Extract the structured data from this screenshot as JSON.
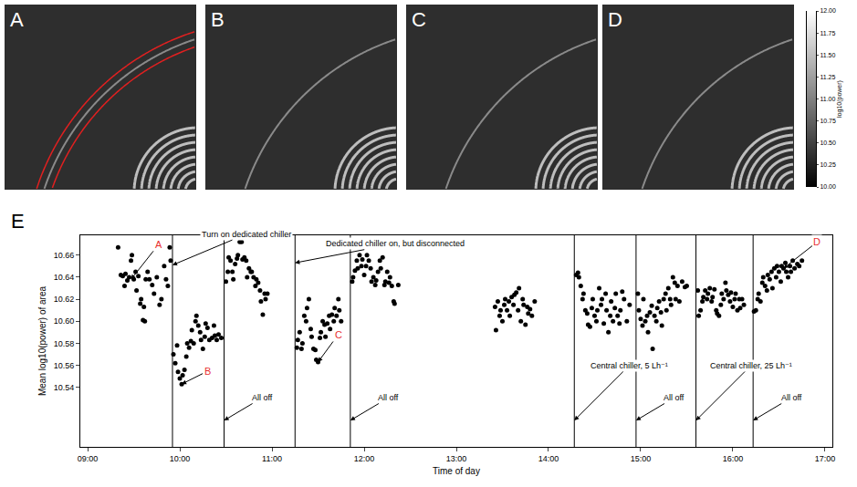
{
  "image_panels": [
    {
      "label": "A"
    },
    {
      "label": "B"
    },
    {
      "label": "C"
    },
    {
      "label": "D"
    }
  ],
  "colorbar": {
    "title": "log10(power)",
    "range": [
      10,
      12
    ],
    "ticks": [
      {
        "value": 10,
        "label": "10.00"
      },
      10.25,
      {
        "value": 10.5,
        "label": "10.50"
      },
      10.75,
      {
        "value": 11,
        "label": "11.00"
      },
      11.25,
      {
        "value": 11.5,
        "label": "11.50"
      },
      11.75,
      {
        "value": 12,
        "label": "12.00"
      }
    ]
  },
  "chart_label": "E",
  "chart_data": {
    "type": "scatter",
    "x_label": "Time of day",
    "y_label": "Mean log10(power) of area",
    "color": "#000000",
    "marker": "circle",
    "grid": false,
    "xlim": [
      8.92,
      17.08
    ],
    "xticks": [
      {
        "value": 9,
        "label": "09:00"
      },
      {
        "value": 10,
        "label": "10:00"
      },
      {
        "value": 11,
        "label": "11:00"
      },
      {
        "value": 12,
        "label": "12:00"
      },
      {
        "value": 13,
        "label": "13:00"
      },
      {
        "value": 14,
        "label": "14:00"
      },
      {
        "value": 15,
        "label": "15:00"
      },
      {
        "value": 16,
        "label": "16:00"
      },
      {
        "value": 17,
        "label": "17:00"
      }
    ],
    "ylim": [
      10.486,
      10.678
    ],
    "yticks": [
      10.54,
      10.56,
      10.58,
      {
        "value": 10.6,
        "label": "10.60"
      },
      10.62,
      10.64,
      10.66
    ],
    "vertical_lines": [
      9.92,
      10.48,
      11.25,
      11.85,
      14.28,
      14.95,
      15.6,
      16.22
    ],
    "x": [
      9.33,
      9.36,
      9.38,
      9.4,
      9.41,
      9.43,
      9.45,
      9.47,
      9.48,
      9.5,
      9.52,
      9.53,
      9.55,
      9.57,
      9.58,
      9.6,
      9.61,
      9.62,
      9.63,
      9.65,
      9.67,
      9.7,
      9.72,
      9.75,
      9.78,
      9.8,
      9.83,
      9.85,
      9.87,
      9.89,
      9.9,
      9.93,
      9.95,
      9.97,
      9.98,
      10.0,
      10.02,
      10.03,
      10.05,
      10.07,
      10.08,
      10.1,
      10.12,
      10.13,
      10.15,
      10.17,
      10.18,
      10.2,
      10.22,
      10.23,
      10.25,
      10.27,
      10.28,
      10.3,
      10.32,
      10.35,
      10.37,
      10.38,
      10.4,
      10.42,
      10.45,
      10.5,
      10.52,
      10.53,
      10.55,
      10.57,
      10.58,
      10.6,
      10.62,
      10.63,
      10.65,
      10.67,
      10.68,
      10.7,
      10.72,
      10.73,
      10.75,
      10.77,
      10.78,
      10.8,
      10.82,
      10.83,
      10.85,
      10.87,
      10.88,
      10.9,
      10.92,
      10.93,
      10.95,
      11.27,
      11.28,
      11.3,
      11.32,
      11.33,
      11.35,
      11.37,
      11.38,
      11.4,
      11.42,
      11.43,
      11.45,
      11.47,
      11.48,
      11.5,
      11.52,
      11.53,
      11.55,
      11.57,
      11.58,
      11.6,
      11.62,
      11.63,
      11.65,
      11.67,
      11.68,
      11.7,
      11.72,
      11.73,
      11.75,
      11.87,
      11.88,
      11.9,
      11.92,
      11.93,
      11.95,
      11.97,
      11.98,
      12.0,
      12.02,
      12.03,
      12.05,
      12.07,
      12.08,
      12.1,
      12.12,
      12.13,
      12.15,
      12.17,
      12.18,
      12.2,
      12.22,
      12.23,
      12.25,
      12.27,
      12.28,
      12.3,
      12.32,
      12.33,
      12.37,
      13.42,
      13.43,
      13.45,
      13.47,
      13.48,
      13.5,
      13.52,
      13.53,
      13.55,
      13.57,
      13.58,
      13.6,
      13.62,
      13.63,
      13.65,
      13.67,
      13.68,
      13.7,
      13.72,
      13.73,
      13.75,
      13.77,
      13.78,
      13.8,
      13.82,
      13.85,
      14.3,
      14.32,
      14.33,
      14.35,
      14.37,
      14.38,
      14.4,
      14.42,
      14.43,
      14.45,
      14.47,
      14.48,
      14.5,
      14.52,
      14.53,
      14.55,
      14.57,
      14.58,
      14.6,
      14.62,
      14.63,
      14.65,
      14.67,
      14.68,
      14.7,
      14.72,
      14.73,
      14.75,
      14.77,
      14.78,
      14.8,
      14.82,
      14.85,
      14.88,
      14.97,
      14.98,
      15.0,
      15.02,
      15.03,
      15.05,
      15.07,
      15.08,
      15.1,
      15.12,
      15.13,
      15.15,
      15.17,
      15.18,
      15.2,
      15.22,
      15.23,
      15.25,
      15.27,
      15.28,
      15.3,
      15.32,
      15.33,
      15.35,
      15.37,
      15.38,
      15.4,
      15.42,
      15.45,
      15.48,
      15.5,
      15.62,
      15.63,
      15.65,
      15.67,
      15.68,
      15.7,
      15.72,
      15.73,
      15.75,
      15.77,
      15.78,
      15.8,
      15.82,
      15.83,
      15.85,
      15.87,
      15.88,
      15.9,
      15.92,
      15.93,
      15.95,
      15.97,
      15.98,
      16.0,
      16.02,
      16.03,
      16.05,
      16.07,
      16.08,
      16.1,
      16.12,
      16.23,
      16.25,
      16.27,
      16.28,
      16.3,
      16.32,
      16.33,
      16.35,
      16.37,
      16.38,
      16.4,
      16.42,
      16.43,
      16.45,
      16.47,
      16.48,
      16.5,
      16.52,
      16.53,
      16.55,
      16.57,
      16.58,
      16.6,
      16.62,
      16.63,
      16.65,
      16.67,
      16.7,
      16.72,
      16.75
    ],
    "values": [
      10.667,
      10.642,
      10.641,
      10.632,
      10.643,
      10.637,
      10.64,
      10.655,
      10.66,
      10.638,
      10.645,
      10.628,
      10.641,
      10.616,
      10.62,
      10.601,
      10.613,
      10.6,
      10.638,
      10.645,
      10.638,
      10.633,
      10.625,
      10.64,
      10.615,
      10.62,
      10.65,
      10.638,
      10.632,
      10.667,
      10.655,
      10.57,
      10.562,
      10.578,
      10.554,
      10.548,
      10.543,
      10.551,
      10.556,
      10.568,
      10.58,
      10.576,
      10.582,
      10.592,
      10.58,
      10.6,
      10.605,
      10.596,
      10.59,
      10.583,
      10.575,
      10.586,
      10.598,
      10.594,
      10.583,
      10.585,
      10.596,
      10.587,
      10.583,
      10.588,
      10.585,
      10.636,
      10.645,
      10.658,
      10.655,
      10.645,
      10.638,
      10.652,
      10.657,
      10.66,
      10.672,
      10.672,
      10.656,
      10.658,
      10.655,
      10.64,
      10.648,
      10.645,
      10.645,
      10.64,
      10.632,
      10.638,
      10.635,
      10.628,
      10.618,
      10.606,
      10.625,
      10.62,
      10.625,
      10.576,
      10.583,
      10.59,
      10.575,
      10.58,
      10.605,
      10.6,
      10.612,
      10.62,
      10.593,
      10.586,
      10.575,
      10.574,
      10.565,
      10.563,
      10.585,
      10.59,
      10.6,
      10.597,
      10.586,
      10.598,
      10.605,
      10.593,
      10.606,
      10.6,
      10.612,
      10.605,
      10.62,
      10.61,
      10.6,
      10.636,
      10.64,
      10.646,
      10.655,
      10.648,
      10.66,
      10.65,
      10.656,
      10.642,
      10.65,
      10.66,
      10.655,
      10.648,
      10.636,
      10.64,
      10.633,
      10.637,
      10.645,
      10.655,
      10.648,
      10.658,
      10.633,
      10.636,
      10.645,
      10.635,
      10.64,
      10.632,
      10.618,
      10.616,
      10.633,
      10.613,
      10.592,
      10.618,
      10.605,
      10.61,
      10.6,
      10.615,
      10.62,
      10.61,
      10.618,
      10.605,
      10.622,
      10.615,
      10.624,
      10.626,
      10.61,
      10.63,
      10.6,
      10.62,
      10.615,
      10.597,
      10.613,
      10.607,
      10.611,
      10.605,
      10.618,
      10.642,
      10.644,
      10.64,
      10.632,
      10.62,
      10.625,
      10.61,
      10.607,
      10.597,
      10.595,
      10.612,
      10.62,
      10.605,
      10.6,
      10.61,
      10.63,
      10.615,
      10.62,
      10.598,
      10.625,
      10.61,
      10.59,
      10.605,
      10.618,
      10.6,
      10.612,
      10.625,
      10.605,
      10.598,
      10.61,
      10.627,
      10.62,
      10.6,
      10.615,
      10.625,
      10.61,
      10.602,
      10.596,
      10.62,
      10.6,
      10.605,
      10.59,
      10.608,
      10.614,
      10.575,
      10.605,
      10.6,
      10.612,
      10.618,
      10.608,
      10.596,
      10.62,
      10.625,
      10.61,
      10.63,
      10.62,
      10.615,
      10.64,
      10.635,
      10.62,
      10.632,
      10.618,
      10.636,
      10.631,
      10.632,
      10.628,
      10.605,
      10.61,
      10.618,
      10.622,
      10.628,
      10.62,
      10.625,
      10.63,
      10.618,
      10.622,
      10.629,
      10.61,
      10.607,
      10.605,
      10.615,
      10.625,
      10.62,
      10.635,
      10.628,
      10.624,
      10.618,
      10.626,
      10.613,
      10.62,
      10.625,
      10.61,
      10.62,
      10.612,
      10.62,
      10.615,
      10.609,
      10.61,
      10.62,
      10.625,
      10.618,
      10.635,
      10.64,
      10.632,
      10.628,
      10.642,
      10.638,
      10.645,
      10.63,
      10.648,
      10.64,
      10.65,
      10.645,
      10.636,
      10.65,
      10.648,
      10.653,
      10.645,
      10.64,
      10.65,
      10.645,
      10.655,
      10.648,
      10.652,
      10.65,
      10.655
    ],
    "annotations": [
      {
        "text": "A",
        "x": 9.47,
        "y": 10.638,
        "color": "#e8312f"
      },
      {
        "text": "Turn on dedicated chiller",
        "x": 9.92,
        "y": 10.651
      },
      {
        "text": "B",
        "x": 10.02,
        "y": 10.543,
        "color": "#e8312f"
      },
      {
        "text": "All off",
        "x": 10.48,
        "y": 10.51
      },
      {
        "text": "Dedicated chiller on, but disconnected",
        "x": 11.25,
        "y": 10.653
      },
      {
        "text": "C",
        "x": 11.5,
        "y": 10.563,
        "color": "#e8312f"
      },
      {
        "text": "All off",
        "x": 11.85,
        "y": 10.51
      },
      {
        "text": "Central chiller, 5 Lh⁻¹",
        "x": 14.28,
        "y": 10.51
      },
      {
        "text": "All off",
        "x": 14.95,
        "y": 10.51
      },
      {
        "text": "Central chiller, 25 Lh⁻¹",
        "x": 15.6,
        "y": 10.51
      },
      {
        "text": "All off",
        "x": 16.22,
        "y": 10.51
      },
      {
        "text": "D",
        "x": 16.55,
        "y": 10.648,
        "color": "#e8312f"
      }
    ]
  }
}
